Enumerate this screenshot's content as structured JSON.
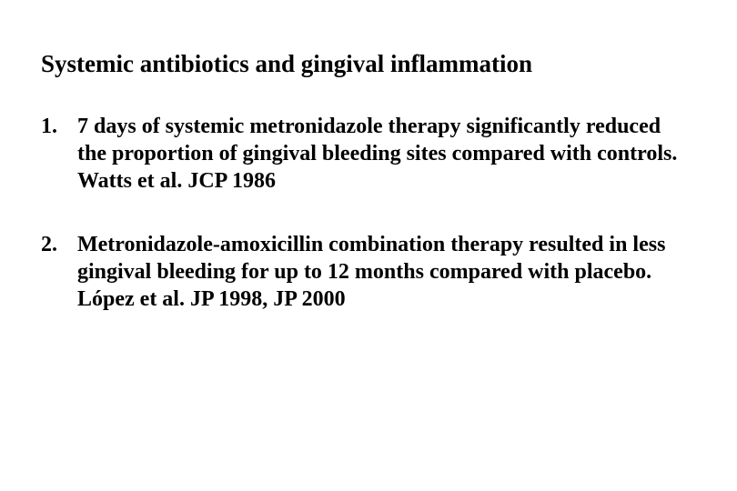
{
  "title": "Systemic antibiotics and gingival inflammation",
  "items": [
    {
      "number": "1.",
      "text": "7 days of systemic metronidazole therapy significantly reduced the proportion of gingival bleeding sites compared with controls. Watts et al. JCP 1986"
    },
    {
      "number": "2.",
      "text": "Metronidazole-amoxicillin combination therapy resulted in less gingival bleeding for up to 12 months compared with placebo. López et al. JP 1998, JP 2000"
    }
  ],
  "colors": {
    "background": "#ffffff",
    "text": "#000000"
  },
  "typography": {
    "title_fontsize": 27,
    "body_fontsize": 24,
    "font_family": "Times New Roman",
    "font_weight": "bold"
  }
}
